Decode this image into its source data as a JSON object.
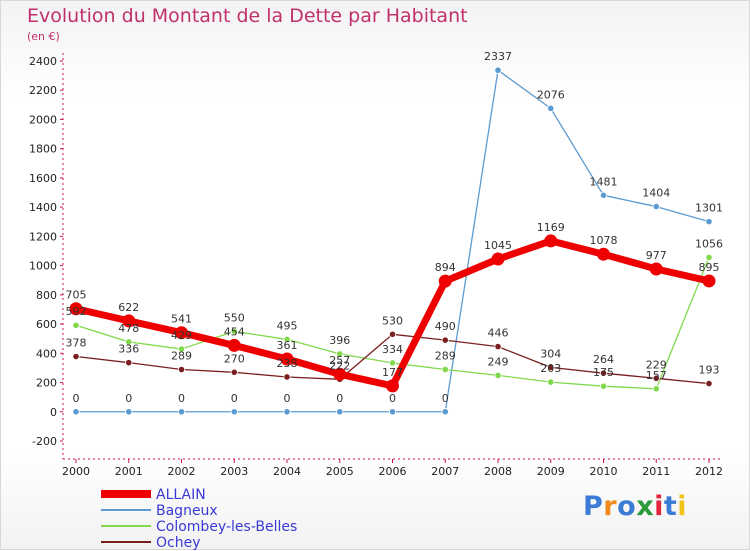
{
  "title": "Evolution du Montant de la Dette par Habitant",
  "subtitle": "(en €)",
  "brand": "Proxiti",
  "chart_data": {
    "type": "line",
    "title": "Evolution du Montant de la Dette par Habitant",
    "subtitle": "(en €)",
    "xlabel": "",
    "ylabel": "",
    "categories": [
      "2000",
      "2001",
      "2002",
      "2003",
      "2004",
      "2005",
      "2006",
      "2007",
      "2008",
      "2009",
      "2010",
      "2011",
      "2012"
    ],
    "ylim": [
      -200,
      2400
    ],
    "yticks": [
      -200,
      0,
      200,
      400,
      600,
      800,
      1000,
      1200,
      1400,
      1600,
      1800,
      2000,
      2200,
      2400
    ],
    "grid": false,
    "legend_position": "bottom-left",
    "series": [
      {
        "name": "ALLAIN",
        "color": "#ee0000",
        "emphasis": true,
        "values": [
          705,
          622,
          541,
          454,
          361,
          257,
          177,
          894,
          1045,
          1169,
          1078,
          977,
          895
        ]
      },
      {
        "name": "Bagneux",
        "color": "#5b9bd1",
        "emphasis": false,
        "values": [
          0,
          0,
          0,
          0,
          0,
          0,
          0,
          0,
          2337,
          2076,
          1481,
          1404,
          1301
        ]
      },
      {
        "name": "Colombey-les-Belles",
        "color": "#80d84a",
        "emphasis": false,
        "values": [
          592,
          478,
          429,
          550,
          495,
          396,
          334,
          289,
          249,
          203,
          175,
          157,
          1056
        ]
      },
      {
        "name": "Ochey",
        "color": "#7a1f1f",
        "emphasis": false,
        "values": [
          378,
          336,
          289,
          270,
          238,
          222,
          530,
          490,
          446,
          304,
          264,
          229,
          193
        ]
      }
    ]
  }
}
